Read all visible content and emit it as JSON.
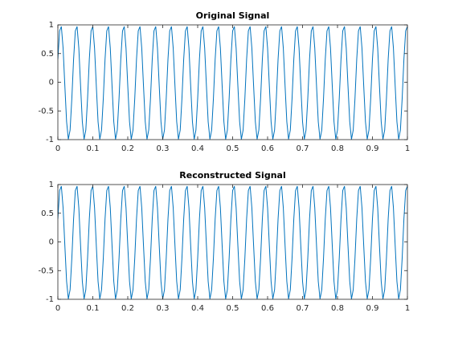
{
  "chart_data": [
    {
      "type": "line",
      "title": "Original Signal",
      "color": "#0072BD",
      "x": [
        0,
        0.005,
        0.01,
        0.015,
        0.02,
        0.025,
        0.03,
        0.035,
        0.04,
        0.045,
        0.05,
        0.055,
        0.06,
        0.065,
        0.07,
        0.075,
        0.08,
        0.085,
        0.09,
        0.095,
        0.1,
        0.105,
        0.11,
        0.115,
        0.12,
        0.125,
        0.13,
        0.135,
        0.14,
        0.145,
        0.15,
        0.155,
        0.16,
        0.165,
        0.17,
        0.175,
        0.18,
        0.185,
        0.19,
        0.195,
        0.2,
        0.205,
        0.21,
        0.215,
        0.22,
        0.225,
        0.23,
        0.235,
        0.24,
        0.245,
        0.25,
        0.255,
        0.26,
        0.265,
        0.27,
        0.275,
        0.28,
        0.285,
        0.29,
        0.295,
        0.3,
        0.305,
        0.31,
        0.315,
        0.32,
        0.325,
        0.33,
        0.335,
        0.34,
        0.345,
        0.35,
        0.355,
        0.36,
        0.365,
        0.37,
        0.375,
        0.38,
        0.385,
        0.39,
        0.395,
        0.4,
        0.405,
        0.41,
        0.415,
        0.42,
        0.425,
        0.43,
        0.435,
        0.44,
        0.445,
        0.45,
        0.455,
        0.46,
        0.465,
        0.47,
        0.475,
        0.48,
        0.485,
        0.49,
        0.495,
        0.5,
        0.505,
        0.51,
        0.515,
        0.52,
        0.525,
        0.53,
        0.535,
        0.54,
        0.545,
        0.55,
        0.555,
        0.56,
        0.565,
        0.57,
        0.575,
        0.58,
        0.585,
        0.59,
        0.595,
        0.6,
        0.605,
        0.61,
        0.615,
        0.62,
        0.625,
        0.63,
        0.635,
        0.64,
        0.645,
        0.65,
        0.655,
        0.66,
        0.665,
        0.67,
        0.675,
        0.68,
        0.685,
        0.69,
        0.695,
        0.7,
        0.705,
        0.71,
        0.715,
        0.72,
        0.725,
        0.73,
        0.735,
        0.74,
        0.745,
        0.75,
        0.755,
        0.76,
        0.765,
        0.77,
        0.775,
        0.78,
        0.785,
        0.79,
        0.795,
        0.8,
        0.805,
        0.81,
        0.815,
        0.82,
        0.825,
        0.83,
        0.835,
        0.84,
        0.845,
        0.85,
        0.855,
        0.86,
        0.865,
        0.87,
        0.875,
        0.88,
        0.885,
        0.89,
        0.895,
        0.9,
        0.905,
        0.91,
        0.915,
        0.92,
        0.925,
        0.93,
        0.935,
        0.94,
        0.945,
        0.95,
        0.955,
        0.96,
        0.965,
        0.97,
        0.975,
        0.98,
        0.985,
        0.99,
        0.995,
        1
      ],
      "values": [
        0.4,
        0.896,
        0.972,
        0.594,
        -0.062,
        -0.689,
        -0.994,
        -0.833,
        -0.283,
        0.4,
        0.896,
        0.972,
        0.594,
        -0.062,
        -0.689,
        -0.994,
        -0.833,
        -0.283,
        0.4,
        0.896,
        0.972,
        0.594,
        -0.062,
        -0.689,
        -0.994,
        -0.833,
        -0.283,
        0.4,
        0.896,
        0.972,
        0.594,
        -0.062,
        -0.689,
        -0.994,
        -0.833,
        -0.283,
        0.4,
        0.896,
        0.972,
        0.594,
        -0.062,
        -0.689,
        -0.994,
        -0.833,
        -0.283,
        0.4,
        0.896,
        0.972,
        0.594,
        -0.062,
        -0.689,
        -0.994,
        -0.833,
        -0.283,
        0.4,
        0.896,
        0.972,
        0.594,
        -0.062,
        -0.689,
        -0.994,
        -0.833,
        -0.283,
        0.4,
        0.896,
        0.972,
        0.594,
        -0.062,
        -0.689,
        -0.994,
        -0.833,
        -0.283,
        0.4,
        0.896,
        0.972,
        0.594,
        -0.062,
        -0.689,
        -0.994,
        -0.833,
        -0.283,
        0.4,
        0.896,
        0.972,
        0.594,
        -0.062,
        -0.689,
        -0.994,
        -0.833,
        -0.283,
        0.4,
        0.896,
        0.972,
        0.594,
        -0.062,
        -0.689,
        -0.994,
        -0.833,
        -0.283,
        0.4,
        0.896,
        0.972,
        0.594,
        -0.062,
        -0.689,
        -0.994,
        -0.833,
        -0.283,
        0.4,
        0.896,
        0.972,
        0.594,
        -0.062,
        -0.689,
        -0.994,
        -0.833,
        -0.283,
        0.4,
        0.896,
        0.972,
        0.594,
        -0.062,
        -0.689,
        -0.994,
        -0.833,
        -0.283,
        0.4,
        0.896,
        0.972,
        0.594,
        -0.062,
        -0.689,
        -0.994,
        -0.833,
        -0.283,
        0.4,
        0.896,
        0.972,
        0.594,
        -0.062,
        -0.689,
        -0.994,
        -0.833,
        -0.283,
        0.4,
        0.896,
        0.972,
        0.594,
        -0.062,
        -0.689,
        -0.994,
        -0.833,
        -0.283,
        0.4,
        0.896,
        0.972,
        0.594,
        -0.062,
        -0.689,
        -0.994,
        -0.833,
        -0.283,
        0.4,
        0.896,
        0.972,
        0.594,
        -0.062,
        -0.689,
        -0.994,
        -0.833,
        -0.283,
        0.4,
        0.896,
        0.972,
        0.594,
        -0.062,
        -0.689,
        -0.994,
        -0.833,
        -0.283,
        0.4,
        0.896,
        0.972,
        0.594,
        -0.062,
        -0.689,
        -0.994,
        -0.833,
        -0.283,
        0.4,
        0.896,
        0.972,
        0.594,
        -0.062,
        -0.689,
        -0.994,
        -0.833,
        -0.283,
        0.4,
        0.896,
        0.972
      ],
      "xlim": [
        0,
        1
      ],
      "xticks": [
        0,
        0.1,
        0.2,
        0.3,
        0.4,
        0.5,
        0.6,
        0.7,
        0.8,
        0.9,
        1
      ],
      "ylim": [
        -1,
        1
      ],
      "yticks": [
        -1,
        -0.5,
        0,
        0.5,
        1
      ],
      "grid": false
    },
    {
      "type": "line",
      "title": "Reconstructed Signal",
      "color": "#0072BD",
      "x": [
        0,
        0.005,
        0.01,
        0.015,
        0.02,
        0.025,
        0.03,
        0.035,
        0.04,
        0.045,
        0.05,
        0.055,
        0.06,
        0.065,
        0.07,
        0.075,
        0.08,
        0.085,
        0.09,
        0.095,
        0.1,
        0.105,
        0.11,
        0.115,
        0.12,
        0.125,
        0.13,
        0.135,
        0.14,
        0.145,
        0.15,
        0.155,
        0.16,
        0.165,
        0.17,
        0.175,
        0.18,
        0.185,
        0.19,
        0.195,
        0.2,
        0.205,
        0.21,
        0.215,
        0.22,
        0.225,
        0.23,
        0.235,
        0.24,
        0.245,
        0.25,
        0.255,
        0.26,
        0.265,
        0.27,
        0.275,
        0.28,
        0.285,
        0.29,
        0.295,
        0.3,
        0.305,
        0.31,
        0.315,
        0.32,
        0.325,
        0.33,
        0.335,
        0.34,
        0.345,
        0.35,
        0.355,
        0.36,
        0.365,
        0.37,
        0.375,
        0.38,
        0.385,
        0.39,
        0.395,
        0.4,
        0.405,
        0.41,
        0.415,
        0.42,
        0.425,
        0.43,
        0.435,
        0.44,
        0.445,
        0.45,
        0.455,
        0.46,
        0.465,
        0.47,
        0.475,
        0.48,
        0.485,
        0.49,
        0.495,
        0.5,
        0.505,
        0.51,
        0.515,
        0.52,
        0.525,
        0.53,
        0.535,
        0.54,
        0.545,
        0.55,
        0.555,
        0.56,
        0.565,
        0.57,
        0.575,
        0.58,
        0.585,
        0.59,
        0.595,
        0.6,
        0.605,
        0.61,
        0.615,
        0.62,
        0.625,
        0.63,
        0.635,
        0.64,
        0.645,
        0.65,
        0.655,
        0.66,
        0.665,
        0.67,
        0.675,
        0.68,
        0.685,
        0.69,
        0.695,
        0.7,
        0.705,
        0.71,
        0.715,
        0.72,
        0.725,
        0.73,
        0.735,
        0.74,
        0.745,
        0.75,
        0.755,
        0.76,
        0.765,
        0.77,
        0.775,
        0.78,
        0.785,
        0.79,
        0.795,
        0.8,
        0.805,
        0.81,
        0.815,
        0.82,
        0.825,
        0.83,
        0.835,
        0.84,
        0.845,
        0.85,
        0.855,
        0.86,
        0.865,
        0.87,
        0.875,
        0.88,
        0.885,
        0.89,
        0.895,
        0.9,
        0.905,
        0.91,
        0.915,
        0.92,
        0.925,
        0.93,
        0.935,
        0.94,
        0.945,
        0.95,
        0.955,
        0.96,
        0.965,
        0.97,
        0.975,
        0.98,
        0.985,
        0.99,
        0.995,
        1
      ],
      "values": [
        0.4,
        0.896,
        0.972,
        0.594,
        -0.062,
        -0.689,
        -0.994,
        -0.833,
        -0.283,
        0.4,
        0.896,
        0.972,
        0.594,
        -0.062,
        -0.689,
        -0.994,
        -0.833,
        -0.283,
        0.4,
        0.896,
        0.972,
        0.594,
        -0.062,
        -0.689,
        -0.994,
        -0.833,
        -0.283,
        0.4,
        0.896,
        0.972,
        0.594,
        -0.062,
        -0.689,
        -0.994,
        -0.833,
        -0.283,
        0.4,
        0.896,
        0.972,
        0.594,
        -0.062,
        -0.689,
        -0.994,
        -0.833,
        -0.283,
        0.4,
        0.896,
        0.972,
        0.594,
        -0.062,
        -0.689,
        -0.994,
        -0.833,
        -0.283,
        0.4,
        0.896,
        0.972,
        0.594,
        -0.062,
        -0.689,
        -0.994,
        -0.833,
        -0.283,
        0.4,
        0.896,
        0.972,
        0.594,
        -0.062,
        -0.689,
        -0.994,
        -0.833,
        -0.283,
        0.4,
        0.896,
        0.972,
        0.594,
        -0.062,
        -0.689,
        -0.994,
        -0.833,
        -0.283,
        0.4,
        0.896,
        0.972,
        0.594,
        -0.062,
        -0.689,
        -0.994,
        -0.833,
        -0.283,
        0.4,
        0.896,
        0.972,
        0.594,
        -0.062,
        -0.689,
        -0.994,
        -0.833,
        -0.283,
        0.4,
        0.896,
        0.972,
        0.594,
        -0.062,
        -0.689,
        -0.994,
        -0.833,
        -0.283,
        0.4,
        0.896,
        0.972,
        0.594,
        -0.062,
        -0.689,
        -0.994,
        -0.833,
        -0.283,
        0.4,
        0.896,
        0.972,
        0.594,
        -0.062,
        -0.689,
        -0.994,
        -0.833,
        -0.283,
        0.4,
        0.896,
        0.972,
        0.594,
        -0.062,
        -0.689,
        -0.994,
        -0.833,
        -0.283,
        0.4,
        0.896,
        0.972,
        0.594,
        -0.062,
        -0.689,
        -0.994,
        -0.833,
        -0.283,
        0.4,
        0.896,
        0.972,
        0.594,
        -0.062,
        -0.689,
        -0.994,
        -0.833,
        -0.283,
        0.4,
        0.896,
        0.972,
        0.594,
        -0.062,
        -0.689,
        -0.994,
        -0.833,
        -0.283,
        0.4,
        0.896,
        0.972,
        0.594,
        -0.062,
        -0.689,
        -0.994,
        -0.833,
        -0.283,
        0.4,
        0.896,
        0.972,
        0.594,
        -0.062,
        -0.689,
        -0.994,
        -0.833,
        -0.283,
        0.4,
        0.896,
        0.972,
        0.594,
        -0.062,
        -0.689,
        -0.994,
        -0.833,
        -0.283,
        0.4,
        0.896,
        0.972,
        0.594,
        -0.062,
        -0.689,
        -0.994,
        -0.833,
        -0.283,
        0.4,
        0.896,
        0.972
      ],
      "xlim": [
        0,
        1
      ],
      "xticks": [
        0,
        0.1,
        0.2,
        0.3,
        0.4,
        0.5,
        0.6,
        0.7,
        0.8,
        0.9,
        1
      ],
      "ylim": [
        -1,
        1
      ],
      "yticks": [
        -1,
        -0.5,
        0,
        0.5,
        1
      ],
      "grid": false
    }
  ]
}
